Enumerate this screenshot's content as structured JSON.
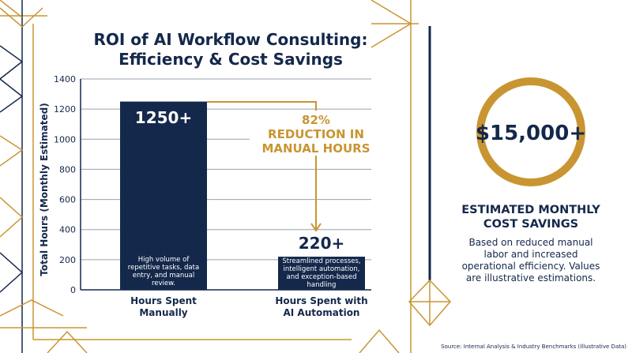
{
  "chart_data": {
    "type": "bar",
    "title_line1": "ROI of AI Workflow Consulting:",
    "title_line2": "Efficiency & Cost Savings",
    "ylabel": "Total Hours (Monthly Estimated)",
    "ylim": [
      0,
      1400
    ],
    "yticks": [
      "0",
      "200",
      "400",
      "600",
      "800",
      "1000",
      "1200",
      "1400"
    ],
    "grid": true,
    "categories": [
      {
        "line1": "Hours Spent",
        "line2": "Manually"
      },
      {
        "line1": "Hours Spent with",
        "line2": "AI Automation"
      }
    ],
    "values": [
      1250,
      220
    ],
    "value_labels": [
      "1250+",
      "220+"
    ],
    "bar_descriptions": [
      [
        "High volume of",
        "repetitive tasks, data",
        "entry, and manual",
        "review."
      ],
      [
        "Streamlined processes,",
        "intelligent automation,",
        "and exception-based",
        "handling"
      ]
    ],
    "annotation": [
      "82%",
      "REDUCTION IN",
      "MANUAL HOURS"
    ]
  },
  "savings": {
    "amount": "$15,000+",
    "heading_line1": "ESTIMATED MONTHLY",
    "heading_line2": "COST SAVINGS",
    "description": [
      "Based on reduced manual",
      "labor and increased",
      "operational efficiency. Values",
      "are illustrative estimations."
    ]
  },
  "source": "Source: Internal Analysis & Industry Benchmarks (Illustrative Data)",
  "colors": {
    "navy": "#14284b",
    "gold": "#c99532",
    "bg": "#ffffff"
  }
}
